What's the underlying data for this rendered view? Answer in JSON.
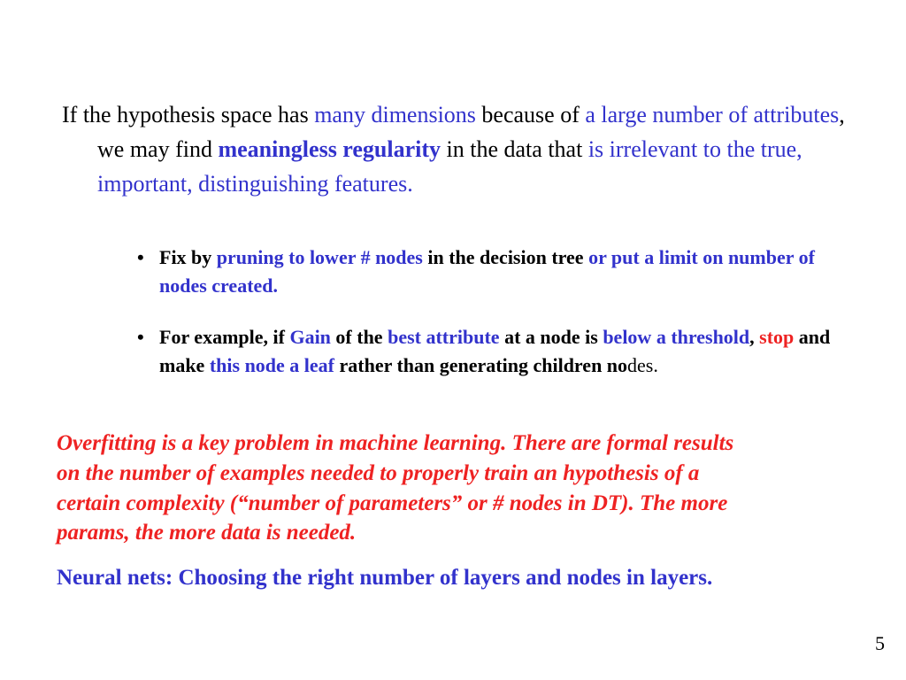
{
  "colors": {
    "blue": "#3232cc",
    "red": "#ee2222",
    "black": "#000000",
    "background": "#ffffff"
  },
  "typography": {
    "font_family": "Times New Roman",
    "para1_fontsize": 26,
    "bullet_fontsize": 22,
    "para_red_fontsize": 25,
    "para_nn_fontsize": 25,
    "page_num_fontsize": 22
  },
  "para1": {
    "t1": "If the  hypothesis space has ",
    "t2": "many dimensions ",
    "t3": "because of ",
    "t4": "a large number of attributes",
    "t5": ", we may find ",
    "t6": "meaningless regularity ",
    "t7": "in the data that ",
    "t8": "is irrelevant to the true, important, distinguishing features."
  },
  "bullets": [
    {
      "t1": "Fix by ",
      "t2": "pruning to lower # nodes ",
      "t3": "in the decision tree ",
      "t4": "or put a limit on number of nodes created."
    },
    {
      "t1": "For example, if ",
      "t2": "Gain ",
      "t3": "of the ",
      "t4": "best attribute ",
      "t5": "at a node is ",
      "t6": "below a threshold",
      "t7": ", ",
      "t8": "stop ",
      "t9": "and make ",
      "t10": "this node a leaf ",
      "t11": "rather than generating children no",
      "t12": "des."
    }
  ],
  "para_red": "Overfitting is a key problem in machine learning. There are formal results on the number of examples needed to properly train an hypothesis of a certain complexity (“number of parameters” or # nodes in DT). The more params, the more data is needed.",
  "para_nn": "Neural nets: Choosing the right number of layers and nodes in layers.",
  "page_number": "5"
}
